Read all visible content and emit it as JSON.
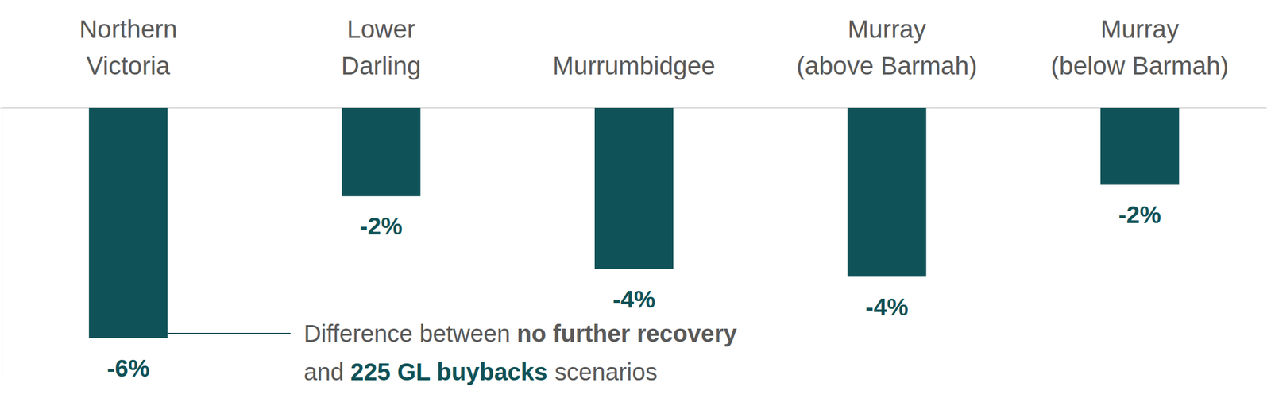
{
  "chart_data": {
    "type": "bar",
    "categories": [
      "Northern\nVictoria",
      "Lower\nDarling",
      "Murrumbidgee",
      "Murray\n(above Barmah)",
      "Murray\n(below Barmah)"
    ],
    "values": [
      -6,
      -2.3,
      -4.2,
      -4.4,
      -2
    ],
    "value_labels": [
      "-6%",
      "-2%",
      "-4%",
      "-4%",
      "-2%"
    ],
    "color": "#0f5257",
    "ylim": [
      -7,
      0
    ],
    "yticks": [
      -7,
      0
    ],
    "grid": false,
    "data_labels": true,
    "tick_labels": "x",
    "annotation": [
      "Difference between ",
      "no further recovery",
      "\nand ",
      "225 GL buybacks",
      " scenarios"
    ]
  }
}
